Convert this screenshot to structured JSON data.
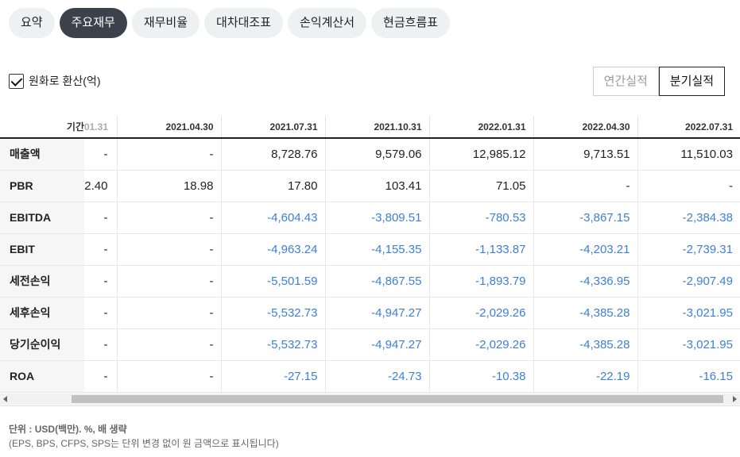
{
  "tabs": [
    {
      "label": "요약",
      "active": false
    },
    {
      "label": "주요재무",
      "active": true
    },
    {
      "label": "재무비율",
      "active": false
    },
    {
      "label": "대차대조표",
      "active": false
    },
    {
      "label": "손익계산서",
      "active": false
    },
    {
      "label": "현금흐름표",
      "active": false
    }
  ],
  "convert": {
    "label": "원화로 환산(억)",
    "checked": true
  },
  "period_toggle": {
    "annual": "연간실적",
    "quarterly": "분기실적",
    "selected": "quarterly"
  },
  "table": {
    "period_label": "기간",
    "first_col_header": "01.31",
    "columns": [
      "2021.04.30",
      "2021.07.31",
      "2021.10.31",
      "2022.01.31",
      "2022.04.30",
      "2022.07.31"
    ],
    "rows": [
      {
        "label": "매출액",
        "first": "-",
        "values": [
          "-",
          "8,728.76",
          "9,579.06",
          "12,985.12",
          "9,713.51",
          "11,510.03"
        ]
      },
      {
        "label": "PBR",
        "first": "2.40",
        "values": [
          "18.98",
          "17.80",
          "103.41",
          "71.05",
          "-",
          "-"
        ]
      },
      {
        "label": "EBITDA",
        "first": "-",
        "values": [
          "-",
          "-4,604.43",
          "-3,809.51",
          "-780.53",
          "-3,867.15",
          "-2,384.38"
        ]
      },
      {
        "label": "EBIT",
        "first": "-",
        "values": [
          "-",
          "-4,963.24",
          "-4,155.35",
          "-1,133.87",
          "-4,203.21",
          "-2,739.31"
        ]
      },
      {
        "label": "세전손익",
        "first": "-",
        "values": [
          "-",
          "-5,501.59",
          "-4,867.55",
          "-1,893.79",
          "-4,336.95",
          "-2,907.49"
        ]
      },
      {
        "label": "세후손익",
        "first": "-",
        "values": [
          "-",
          "-5,532.73",
          "-4,947.27",
          "-2,029.26",
          "-4,385.28",
          "-3,021.95"
        ]
      },
      {
        "label": "당기순이익",
        "first": "-",
        "values": [
          "-",
          "-5,532.73",
          "-4,947.27",
          "-2,029.26",
          "-4,385.28",
          "-3,021.95"
        ]
      },
      {
        "label": "ROA",
        "first": "-",
        "values": [
          "-",
          "-27.15",
          "-24.73",
          "-10.38",
          "-22.19",
          "-16.15"
        ]
      }
    ]
  },
  "footnote": {
    "unit": "단위 : USD(백만). %, 배 생략",
    "note": "(EPS, BPS, CFPS, SPS는 단위 변경 없이 원 금액으로 표시됩니다)"
  },
  "colors": {
    "negative": "#3d7fd9",
    "active_tab": "#3b424b"
  }
}
